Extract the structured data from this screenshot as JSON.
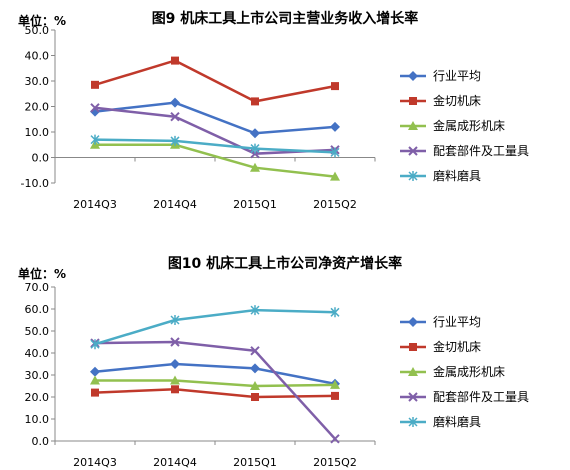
{
  "chart_data": [
    {
      "type": "line",
      "title": "图9 机床工具上市公司主营业务收入增长率",
      "unit_label": "单位：%",
      "categories": [
        "2014Q3",
        "2014Q4",
        "2015Q1",
        "2015Q2"
      ],
      "y_ticks": [
        "-10.0",
        "0.0",
        "10.0",
        "20.0",
        "30.0",
        "40.0",
        "50.0"
      ],
      "ylim": [
        -10,
        50
      ],
      "legend_position": "right",
      "series": [
        {
          "name": "行业平均",
          "color": "#4472c4",
          "marker": "diamond",
          "values": [
            18,
            21.5,
            9.5,
            12
          ]
        },
        {
          "name": "金切机床",
          "color": "#c0392b",
          "marker": "square",
          "values": [
            28.5,
            38,
            22,
            28
          ]
        },
        {
          "name": "金属成形机床",
          "color": "#92c04f",
          "marker": "triangle",
          "values": [
            5,
            5,
            -4,
            -7.5
          ]
        },
        {
          "name": "配套部件及工量具",
          "color": "#7f5fa8",
          "marker": "x",
          "values": [
            19.5,
            16,
            1.5,
            3
          ]
        },
        {
          "name": "磨料磨具",
          "color": "#4bacc6",
          "marker": "star",
          "values": [
            7,
            6.5,
            3.5,
            2
          ]
        }
      ]
    },
    {
      "type": "line",
      "title": "图10 机床工具上市公司净资产增长率",
      "unit_label": "单位：%",
      "categories": [
        "2014Q3",
        "2014Q4",
        "2015Q1",
        "2015Q2"
      ],
      "y_ticks": [
        "0.0",
        "10.0",
        "20.0",
        "30.0",
        "40.0",
        "50.0",
        "60.0",
        "70.0"
      ],
      "ylim": [
        0,
        70
      ],
      "legend_position": "right",
      "series": [
        {
          "name": "行业平均",
          "color": "#4472c4",
          "marker": "diamond",
          "values": [
            31.5,
            35,
            33,
            26
          ]
        },
        {
          "name": "金切机床",
          "color": "#c0392b",
          "marker": "square",
          "values": [
            22,
            23.5,
            20,
            20.5
          ]
        },
        {
          "name": "金属成形机床",
          "color": "#92c04f",
          "marker": "triangle",
          "values": [
            27.5,
            27.5,
            25,
            25.5
          ]
        },
        {
          "name": "配套部件及工量具",
          "color": "#7f5fa8",
          "marker": "x",
          "values": [
            44.5,
            45,
            41,
            1
          ]
        },
        {
          "name": "磨料磨具",
          "color": "#4bacc6",
          "marker": "star",
          "values": [
            44,
            55,
            59.5,
            58.5
          ]
        }
      ]
    }
  ]
}
